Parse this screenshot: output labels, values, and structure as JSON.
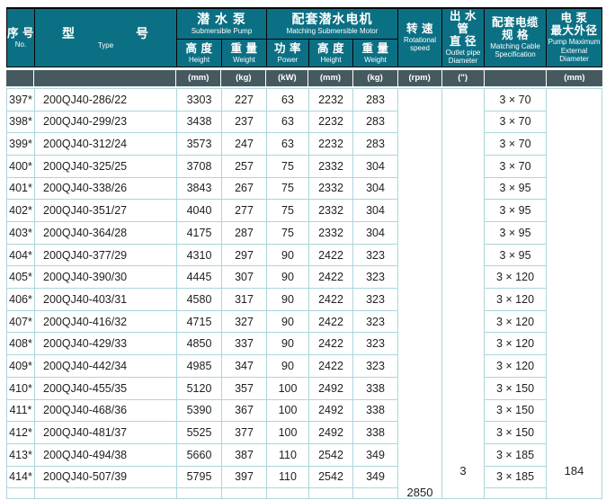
{
  "header": {
    "no": {
      "cn": "序 号",
      "en": "No."
    },
    "type": {
      "cn_left": "型",
      "cn_right": "号",
      "en": "Type"
    },
    "pump": {
      "cn": "潜 水 泵",
      "en": "Submersible Pump"
    },
    "motor": {
      "cn": "配套潜水电机",
      "en": "Matching Submersible Motor"
    },
    "pump_height": {
      "cn": "高 度",
      "en": "Height"
    },
    "pump_weight": {
      "cn": "重 量",
      "en": "Weight"
    },
    "power": {
      "cn": "功 率",
      "en": "Power"
    },
    "motor_height": {
      "cn": "高 度",
      "en": "Height"
    },
    "motor_weight": {
      "cn": "重 量",
      "en": "Weight"
    },
    "speed": {
      "cn": "转 速",
      "en": "Rotational speed"
    },
    "outlet": {
      "cn1": "出 水 管",
      "cn2": "直 径",
      "en": "Outlet pipe Diameter"
    },
    "cable": {
      "cn1": "配套电缆",
      "cn2": "规 格",
      "en": "Matching Cable Specification"
    },
    "maxdiam": {
      "cn1": "电 泵",
      "cn2": "最大外径",
      "en": "Pump Maximum External Diameter"
    }
  },
  "units": {
    "no": "",
    "type": "",
    "pump_height": "(mm)",
    "pump_weight": "(kg)",
    "power": "(kW)",
    "motor_height": "(mm)",
    "motor_weight": "(kg)",
    "speed": "(rpm)",
    "outlet": "(\")",
    "cable": "",
    "maxdiam": "(mm)"
  },
  "merged": {
    "speed": "2850",
    "outlet": "3",
    "maxdiam": "184"
  },
  "colors": {
    "header_teal": "#0c7084",
    "units_gray": "#46595f",
    "grid_line": "#abd6dc",
    "header_line": "#050505"
  },
  "rows": [
    {
      "no": "397*",
      "type": "200QJ40-286/22",
      "pump_height": "3303",
      "pump_weight": "227",
      "power": "63",
      "motor_height": "2232",
      "motor_weight": "283",
      "cable": "3 × 70"
    },
    {
      "no": "398*",
      "type": "200QJ40-299/23",
      "pump_height": "3438",
      "pump_weight": "237",
      "power": "63",
      "motor_height": "2232",
      "motor_weight": "283",
      "cable": "3 × 70"
    },
    {
      "no": "399*",
      "type": "200QJ40-312/24",
      "pump_height": "3573",
      "pump_weight": "247",
      "power": "63",
      "motor_height": "2232",
      "motor_weight": "283",
      "cable": "3 × 70"
    },
    {
      "no": "400*",
      "type": "200QJ40-325/25",
      "pump_height": "3708",
      "pump_weight": "257",
      "power": "75",
      "motor_height": "2332",
      "motor_weight": "304",
      "cable": "3 × 70"
    },
    {
      "no": "401*",
      "type": "200QJ40-338/26",
      "pump_height": "3843",
      "pump_weight": "267",
      "power": "75",
      "motor_height": "2332",
      "motor_weight": "304",
      "cable": "3 × 95"
    },
    {
      "no": "402*",
      "type": "200QJ40-351/27",
      "pump_height": "4040",
      "pump_weight": "277",
      "power": "75",
      "motor_height": "2332",
      "motor_weight": "304",
      "cable": "3 × 95"
    },
    {
      "no": "403*",
      "type": "200QJ40-364/28",
      "pump_height": "4175",
      "pump_weight": "287",
      "power": "75",
      "motor_height": "2332",
      "motor_weight": "304",
      "cable": "3 × 95"
    },
    {
      "no": "404*",
      "type": "200QJ40-377/29",
      "pump_height": "4310",
      "pump_weight": "297",
      "power": "90",
      "motor_height": "2422",
      "motor_weight": "323",
      "cable": "3 × 95"
    },
    {
      "no": "405*",
      "type": "200QJ40-390/30",
      "pump_height": "4445",
      "pump_weight": "307",
      "power": "90",
      "motor_height": "2422",
      "motor_weight": "323",
      "cable": "3 × 120"
    },
    {
      "no": "406*",
      "type": "200QJ40-403/31",
      "pump_height": "4580",
      "pump_weight": "317",
      "power": "90",
      "motor_height": "2422",
      "motor_weight": "323",
      "cable": "3 × 120"
    },
    {
      "no": "407*",
      "type": "200QJ40-416/32",
      "pump_height": "4715",
      "pump_weight": "327",
      "power": "90",
      "motor_height": "2422",
      "motor_weight": "323",
      "cable": "3 × 120"
    },
    {
      "no": "408*",
      "type": "200QJ40-429/33",
      "pump_height": "4850",
      "pump_weight": "337",
      "power": "90",
      "motor_height": "2422",
      "motor_weight": "323",
      "cable": "3 × 120"
    },
    {
      "no": "409*",
      "type": "200QJ40-442/34",
      "pump_height": "4985",
      "pump_weight": "347",
      "power": "90",
      "motor_height": "2422",
      "motor_weight": "323",
      "cable": "3 × 120"
    },
    {
      "no": "410*",
      "type": "200QJ40-455/35",
      "pump_height": "5120",
      "pump_weight": "357",
      "power": "100",
      "motor_height": "2492",
      "motor_weight": "338",
      "cable": "3 × 150"
    },
    {
      "no": "411*",
      "type": "200QJ40-468/36",
      "pump_height": "5390",
      "pump_weight": "367",
      "power": "100",
      "motor_height": "2492",
      "motor_weight": "338",
      "cable": "3 × 150"
    },
    {
      "no": "412*",
      "type": "200QJ40-481/37",
      "pump_height": "5525",
      "pump_weight": "377",
      "power": "100",
      "motor_height": "2492",
      "motor_weight": "338",
      "cable": "3 × 150"
    },
    {
      "no": "413*",
      "type": "200QJ40-494/38",
      "pump_height": "5660",
      "pump_weight": "387",
      "power": "110",
      "motor_height": "2542",
      "motor_weight": "349",
      "cable": "3 × 185"
    },
    {
      "no": "414*",
      "type": "200QJ40-507/39",
      "pump_height": "5795",
      "pump_weight": "397",
      "power": "110",
      "motor_height": "2542",
      "motor_weight": "349",
      "cable": "3 × 185"
    }
  ]
}
